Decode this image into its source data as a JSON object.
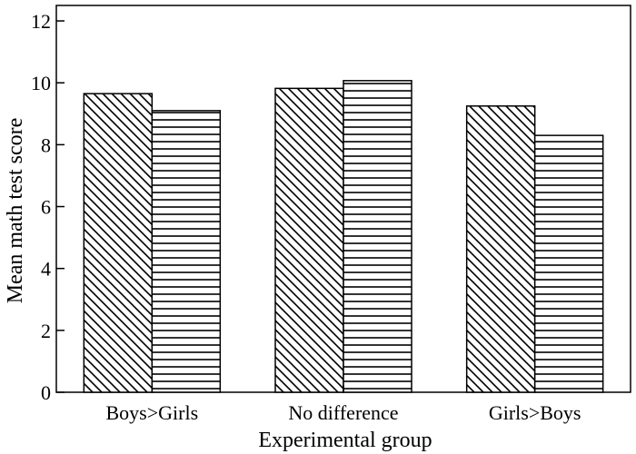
{
  "chart_data": {
    "type": "bar",
    "xlabel": "Experimental group",
    "ylabel": "Mean math test score",
    "categories": [
      "Boys>Girls",
      "No difference",
      "Girls>Boys"
    ],
    "series": [
      {
        "values": [
          9.65,
          9.82,
          9.25
        ],
        "pattern": "diagonal-hatch"
      },
      {
        "values": [
          9.1,
          10.07,
          8.3
        ],
        "pattern": "horizontal-hatch"
      }
    ],
    "ylim": [
      0,
      12.5
    ],
    "yticks": [
      0,
      2,
      4,
      6,
      8,
      10,
      12
    ],
    "grid": false,
    "legend": "none",
    "colors": {
      "stroke": "#000000",
      "fill": "#ffffff"
    }
  }
}
